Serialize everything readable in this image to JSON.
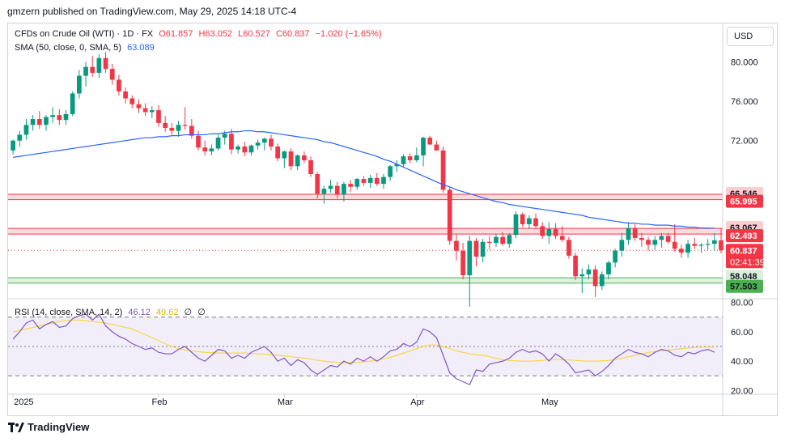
{
  "header": {
    "text": "gmzern published on TradingView.com, May 29, 2025 14:18 UTC-4"
  },
  "legend": {
    "symbol": "CFDs on Crude Oil (WTI) · 1D · FX",
    "open": "O61.857",
    "high": "H63.052",
    "low": "L60.527",
    "close": "C60.837",
    "change": "−1.020 (−1.65%)",
    "sma_label": "SMA (50, close, 0, SMA, 5)",
    "sma_value": "63.089",
    "rsi_label": "RSI (14, close, SMA, 14, 2)",
    "rsi_value": "46.12",
    "rsi_sma_value": "49.62",
    "rsi_extra1": "∅",
    "rsi_extra2": "∅"
  },
  "currency_button": "USD",
  "footer": {
    "brand": "TradingView"
  },
  "colors": {
    "up": "#089981",
    "down": "#f23645",
    "sma": "#2962ff",
    "rsi": "#7e57c2",
    "rsi_sma": "#f7d54b",
    "resistance": "#f23645",
    "support": "#4caf50"
  },
  "chart_data": {
    "type": "candlestick",
    "price_axis": {
      "ticks": [
        80.0,
        76.0,
        72.0
      ],
      "tick_labels": [
        "80.000",
        "76.000",
        "72.000"
      ],
      "ylim": [
        56.0,
        84.0
      ]
    },
    "time_axis": {
      "labels": [
        "2025",
        "Feb",
        "Mar",
        "Apr",
        "May"
      ],
      "label_index": [
        0,
        22,
        41,
        61,
        81
      ]
    },
    "zones": [
      {
        "type": "resistance",
        "upper": 66.546,
        "lower": 65.995,
        "upper_label": "66.546",
        "lower_label": "65.995"
      },
      {
        "type": "resistance",
        "upper": 63.067,
        "lower": 62.493,
        "upper_label": "63.067",
        "lower_label": "62.493"
      },
      {
        "type": "support",
        "upper": 58.048,
        "lower": 57.503,
        "upper_label": "58.048",
        "lower_label": "57.503"
      }
    ],
    "last_price": {
      "value": 60.837,
      "label": "60.837",
      "countdown": "02:41:39"
    },
    "candles": [
      [
        71.0,
        72.1,
        70.6,
        72.0
      ],
      [
        72.0,
        73.0,
        71.4,
        72.6
      ],
      [
        72.6,
        74.2,
        72.1,
        73.6
      ],
      [
        73.6,
        74.6,
        73.0,
        74.2
      ],
      [
        74.2,
        75.0,
        73.2,
        73.6
      ],
      [
        73.6,
        74.6,
        73.0,
        74.4
      ],
      [
        74.4,
        75.4,
        73.8,
        74.6
      ],
      [
        74.6,
        75.2,
        73.6,
        74.1
      ],
      [
        74.1,
        75.1,
        73.6,
        74.7
      ],
      [
        74.7,
        77.0,
        74.5,
        76.8
      ],
      [
        76.8,
        79.2,
        76.3,
        78.6
      ],
      [
        78.6,
        80.0,
        77.5,
        79.5
      ],
      [
        79.5,
        80.6,
        78.5,
        78.9
      ],
      [
        78.9,
        80.8,
        78.4,
        80.4
      ],
      [
        80.4,
        81.0,
        78.9,
        79.3
      ],
      [
        79.3,
        79.8,
        77.7,
        78.2
      ],
      [
        78.2,
        78.7,
        76.6,
        77.0
      ],
      [
        77.0,
        77.4,
        75.8,
        76.3
      ],
      [
        76.3,
        76.6,
        75.3,
        75.7
      ],
      [
        75.7,
        76.2,
        74.8,
        75.3
      ],
      [
        75.3,
        75.8,
        74.5,
        74.9
      ],
      [
        74.9,
        75.5,
        74.3,
        75.1
      ],
      [
        75.1,
        75.6,
        73.4,
        73.8
      ],
      [
        73.8,
        74.5,
        72.9,
        73.3
      ],
      [
        73.3,
        73.8,
        72.6,
        73.0
      ],
      [
        73.0,
        74.0,
        72.4,
        73.6
      ],
      [
        73.6,
        75.4,
        73.1,
        73.5
      ],
      [
        73.5,
        74.2,
        72.2,
        72.5
      ],
      [
        72.5,
        73.0,
        71.0,
        71.3
      ],
      [
        71.3,
        72.0,
        70.5,
        70.9
      ],
      [
        70.9,
        71.6,
        70.5,
        71.2
      ],
      [
        71.2,
        72.6,
        71.0,
        72.3
      ],
      [
        72.3,
        73.0,
        71.6,
        72.7
      ],
      [
        72.7,
        73.2,
        70.6,
        71.1
      ],
      [
        71.1,
        71.6,
        70.7,
        71.4
      ],
      [
        71.4,
        71.9,
        70.4,
        70.8
      ],
      [
        70.8,
        71.6,
        70.5,
        71.5
      ],
      [
        71.5,
        72.1,
        71.1,
        71.8
      ],
      [
        71.8,
        72.3,
        71.0,
        72.2
      ],
      [
        72.2,
        72.6,
        71.0,
        71.4
      ],
      [
        71.4,
        71.7,
        69.9,
        70.2
      ],
      [
        70.2,
        71.0,
        69.2,
        70.9
      ],
      [
        70.9,
        71.2,
        69.0,
        69.4
      ],
      [
        69.4,
        70.6,
        69.0,
        70.5
      ],
      [
        70.5,
        70.9,
        69.7,
        70.0
      ],
      [
        70.0,
        70.4,
        68.3,
        68.6
      ],
      [
        68.6,
        68.8,
        66.1,
        66.6
      ],
      [
        66.6,
        67.4,
        65.6,
        67.1
      ],
      [
        67.1,
        68.0,
        66.7,
        67.4
      ],
      [
        67.4,
        67.8,
        66.1,
        66.5
      ],
      [
        66.5,
        67.8,
        65.8,
        67.6
      ],
      [
        67.6,
        68.0,
        66.8,
        67.3
      ],
      [
        67.3,
        68.2,
        67.0,
        68.1
      ],
      [
        68.1,
        68.4,
        67.4,
        67.7
      ],
      [
        67.7,
        68.5,
        67.2,
        68.2
      ],
      [
        68.2,
        68.7,
        67.4,
        67.6
      ],
      [
        67.6,
        68.6,
        67.1,
        68.3
      ],
      [
        68.3,
        69.5,
        67.9,
        69.4
      ],
      [
        69.4,
        70.0,
        68.8,
        69.6
      ],
      [
        69.6,
        70.6,
        69.3,
        70.4
      ],
      [
        70.4,
        70.7,
        69.7,
        70.0
      ],
      [
        70.0,
        71.3,
        69.8,
        70.5
      ],
      [
        70.5,
        72.4,
        69.4,
        72.3
      ],
      [
        72.3,
        72.5,
        71.6,
        71.6
      ],
      [
        71.6,
        72.0,
        71.0,
        71.0
      ],
      [
        71.0,
        71.4,
        66.7,
        67.0
      ],
      [
        67.0,
        67.3,
        61.4,
        61.8
      ],
      [
        61.8,
        62.5,
        59.8,
        60.8
      ],
      [
        60.8,
        61.6,
        57.9,
        58.3
      ],
      [
        58.3,
        62.3,
        55.1,
        61.8
      ],
      [
        61.8,
        62.1,
        59.2,
        60.2
      ],
      [
        60.2,
        62.0,
        59.6,
        61.7
      ],
      [
        61.7,
        62.3,
        60.9,
        61.6
      ],
      [
        61.6,
        62.5,
        61.2,
        62.2
      ],
      [
        62.2,
        62.7,
        61.3,
        61.5
      ],
      [
        61.5,
        62.6,
        61.1,
        62.4
      ],
      [
        62.4,
        64.8,
        62.1,
        64.5
      ],
      [
        64.5,
        64.7,
        63.2,
        63.5
      ],
      [
        63.5,
        64.4,
        63.0,
        64.1
      ],
      [
        64.1,
        64.6,
        63.1,
        63.3
      ],
      [
        63.3,
        63.7,
        62.0,
        62.3
      ],
      [
        62.3,
        63.7,
        61.5,
        63.0
      ],
      [
        63.0,
        63.6,
        62.0,
        62.3
      ],
      [
        62.3,
        63.3,
        61.7,
        61.9
      ],
      [
        61.9,
        62.2,
        60.0,
        60.3
      ],
      [
        60.3,
        60.6,
        57.8,
        58.2
      ],
      [
        58.2,
        59.0,
        56.5,
        58.4
      ],
      [
        58.4,
        59.4,
        57.9,
        58.9
      ],
      [
        58.9,
        59.3,
        56.1,
        57.2
      ],
      [
        57.2,
        58.7,
        56.8,
        58.4
      ],
      [
        58.4,
        59.8,
        57.9,
        59.6
      ],
      [
        59.6,
        61.0,
        59.1,
        60.8
      ],
      [
        60.8,
        62.6,
        60.2,
        61.9
      ],
      [
        61.9,
        63.7,
        61.4,
        63.1
      ],
      [
        63.1,
        63.5,
        61.8,
        62.1
      ],
      [
        62.1,
        62.6,
        61.2,
        61.9
      ],
      [
        61.9,
        62.2,
        60.8,
        61.4
      ],
      [
        61.4,
        62.3,
        60.9,
        61.9
      ],
      [
        61.9,
        62.6,
        61.1,
        62.3
      ],
      [
        62.3,
        62.6,
        61.5,
        61.7
      ],
      [
        61.7,
        63.5,
        60.7,
        61.0
      ],
      [
        61.0,
        61.4,
        60.1,
        60.6
      ],
      [
        60.6,
        61.9,
        60.1,
        61.5
      ],
      [
        61.5,
        62.1,
        61.0,
        61.3
      ],
      [
        61.3,
        61.6,
        60.6,
        61.4
      ],
      [
        61.4,
        62.0,
        60.9,
        61.5
      ],
      [
        61.5,
        62.6,
        60.8,
        61.857
      ],
      [
        61.857,
        63.052,
        60.527,
        60.837
      ]
    ],
    "sma": [
      70.3,
      70.4,
      70.5,
      70.6,
      70.7,
      70.8,
      70.9,
      71.0,
      71.1,
      71.2,
      71.3,
      71.4,
      71.5,
      71.6,
      71.7,
      71.8,
      71.9,
      72.0,
      72.1,
      72.2,
      72.3,
      72.3,
      72.4,
      72.4,
      72.5,
      72.5,
      72.6,
      72.6,
      72.6,
      72.6,
      72.7,
      72.7,
      72.8,
      72.9,
      72.9,
      73.0,
      73.0,
      72.9,
      72.9,
      72.8,
      72.7,
      72.6,
      72.5,
      72.4,
      72.3,
      72.2,
      72.1,
      71.9,
      71.8,
      71.6,
      71.4,
      71.2,
      71.0,
      70.8,
      70.6,
      70.4,
      70.1,
      69.9,
      69.6,
      69.3,
      69.0,
      68.7,
      68.4,
      68.1,
      67.8,
      67.5,
      67.3,
      67.0,
      66.8,
      66.6,
      66.4,
      66.2,
      66.0,
      65.8,
      65.7,
      65.5,
      65.4,
      65.3,
      65.2,
      65.1,
      65.0,
      64.9,
      64.8,
      64.7,
      64.6,
      64.5,
      64.4,
      64.2,
      64.1,
      64.0,
      63.9,
      63.8,
      63.7,
      63.6,
      63.6,
      63.5,
      63.5,
      63.4,
      63.4,
      63.4,
      63.3,
      63.3,
      63.2,
      63.2,
      63.1,
      63.1,
      63.089
    ],
    "rsi_axis": {
      "ticks": [
        80,
        60,
        40,
        20
      ],
      "tick_labels": [
        "80.00",
        "60.00",
        "40.00",
        "20.00"
      ],
      "ylim": [
        18,
        82
      ],
      "upper_band": 70,
      "lower_band": 30,
      "middle": 50
    },
    "rsi": [
      55,
      60,
      66,
      68,
      62,
      65,
      67,
      63,
      64,
      69,
      71,
      72,
      68,
      72,
      64,
      60,
      57,
      55,
      52,
      50,
      48,
      49,
      46,
      45,
      45,
      48,
      50,
      46,
      42,
      40,
      44,
      48,
      47,
      42,
      44,
      42,
      46,
      48,
      50,
      46,
      40,
      42,
      37,
      41,
      39,
      34,
      31,
      34,
      37,
      36,
      40,
      38,
      42,
      40,
      43,
      40,
      43,
      47,
      48,
      52,
      50,
      53,
      62,
      60,
      56,
      44,
      32,
      28,
      26,
      24,
      34,
      33,
      38,
      39,
      40,
      42,
      46,
      48,
      46,
      47,
      45,
      40,
      45,
      42,
      38,
      32,
      33,
      34,
      30,
      33,
      37,
      42,
      45,
      48,
      46,
      45,
      43,
      46,
      48,
      47,
      44,
      43,
      46,
      45,
      47,
      48,
      46.12
    ],
    "rsi_sma": [
      60,
      61,
      62,
      63,
      64,
      65,
      66,
      67,
      67.5,
      68,
      68,
      67.5,
      67,
      66.5,
      66,
      65,
      64,
      63,
      62,
      60,
      58,
      56,
      54,
      52,
      50,
      48.5,
      47.5,
      47,
      46.5,
      46,
      45.8,
      45.6,
      45.5,
      45.5,
      45.5,
      45.5,
      45.2,
      45,
      44.8,
      44.5,
      44,
      43.5,
      43,
      42.5,
      42,
      41.5,
      40.5,
      40,
      39.5,
      39.2,
      39,
      39,
      39.2,
      39.5,
      40,
      40.5,
      41.5,
      42.5,
      44,
      45.5,
      47,
      48.5,
      50,
      51,
      51,
      50,
      48.5,
      47,
      46,
      45,
      44.5,
      44,
      43,
      42,
      41,
      40.5,
      40.2,
      40,
      40,
      40.2,
      40.5,
      41,
      41.2,
      41,
      40.8,
      40.5,
      40.2,
      40,
      40,
      40.2,
      40.5,
      41,
      42,
      43,
      44,
      45,
      46,
      46.5,
      47,
      47.5,
      48,
      48.5,
      49,
      49.3,
      49.5,
      49.6,
      49.62
    ]
  }
}
